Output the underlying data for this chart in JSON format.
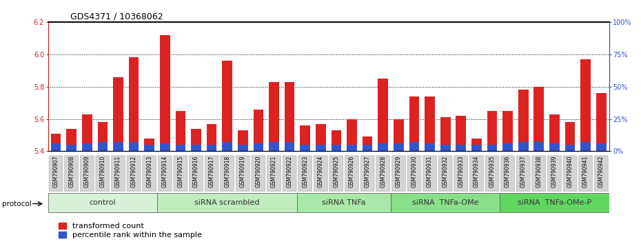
{
  "title": "GDS4371 / 10368062",
  "samples": [
    "GSM790907",
    "GSM790908",
    "GSM790909",
    "GSM790910",
    "GSM790911",
    "GSM790912",
    "GSM790913",
    "GSM790914",
    "GSM790915",
    "GSM790916",
    "GSM790917",
    "GSM790918",
    "GSM790919",
    "GSM790920",
    "GSM790921",
    "GSM790922",
    "GSM790923",
    "GSM790924",
    "GSM790925",
    "GSM790926",
    "GSM790927",
    "GSM790928",
    "GSM790929",
    "GSM790930",
    "GSM790931",
    "GSM790932",
    "GSM790933",
    "GSM790934",
    "GSM790935",
    "GSM790936",
    "GSM790937",
    "GSM790938",
    "GSM790939",
    "GSM790940",
    "GSM790941",
    "GSM790942"
  ],
  "transformed_count": [
    5.51,
    5.54,
    5.63,
    5.58,
    5.86,
    5.98,
    5.48,
    6.12,
    5.65,
    5.54,
    5.57,
    5.96,
    5.53,
    5.66,
    5.83,
    5.83,
    5.56,
    5.57,
    5.53,
    5.6,
    5.49,
    5.85,
    5.6,
    5.74,
    5.74,
    5.61,
    5.62,
    5.48,
    5.65,
    5.65,
    5.78,
    5.8,
    5.63,
    5.58,
    5.97,
    5.76
  ],
  "percentile_rank": [
    6,
    5,
    6,
    7,
    7,
    7,
    5,
    6,
    5,
    5,
    5,
    7,
    5,
    6,
    7,
    7,
    5,
    5,
    5,
    5,
    5,
    6,
    6,
    7,
    6,
    5,
    5,
    5,
    5,
    6,
    7,
    7,
    6,
    5,
    7,
    6
  ],
  "groups": [
    {
      "label": "control",
      "start": 0,
      "end": 7
    },
    {
      "label": "siRNA scrambled",
      "start": 7,
      "end": 16
    },
    {
      "label": "siRNA TNFa",
      "start": 16,
      "end": 22
    },
    {
      "label": "siRNA  TNFa-OMe",
      "start": 22,
      "end": 29
    },
    {
      "label": "siRNA  TNFa-OMe-P",
      "start": 29,
      "end": 36
    }
  ],
  "group_colors": [
    "#d8f0d8",
    "#c0ecc0",
    "#a8e8a8",
    "#88e088",
    "#60d860"
  ],
  "ylim_left": [
    5.4,
    6.2
  ],
  "ylim_right": [
    0,
    100
  ],
  "yticks_left": [
    5.4,
    5.6,
    5.8,
    6.0,
    6.2
  ],
  "yticks_right": [
    0,
    25,
    50,
    75,
    100
  ],
  "bar_color_red": "#dd2222",
  "bar_color_blue": "#3355cc",
  "bar_bottom": 5.4,
  "legend_red": "transformed count",
  "legend_blue": "percentile rank within the sample",
  "protocol_label": "protocol",
  "title_fontsize": 9,
  "tick_fontsize": 7,
  "group_fontsize": 8,
  "legend_fontsize": 8,
  "sample_fontsize": 5.5
}
